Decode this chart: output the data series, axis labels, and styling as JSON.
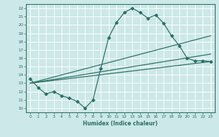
{
  "xlabel": "Humidex (Indice chaleur)",
  "ylabel": "",
  "xlim": [
    -0.5,
    23.5
  ],
  "ylim": [
    9.5,
    22.5
  ],
  "xticks": [
    0,
    1,
    2,
    3,
    4,
    5,
    6,
    7,
    8,
    9,
    10,
    11,
    12,
    13,
    14,
    15,
    16,
    17,
    18,
    19,
    20,
    21,
    22,
    23
  ],
  "yticks": [
    10,
    11,
    12,
    13,
    14,
    15,
    16,
    17,
    18,
    19,
    20,
    21,
    22
  ],
  "bg_color": "#cce8e8",
  "grid_color": "#ffffff",
  "line_color": "#2a6e65",
  "lines": [
    {
      "x": [
        0,
        1,
        2,
        3,
        4,
        5,
        6,
        7,
        8,
        9,
        10,
        11,
        12,
        13,
        14,
        15,
        16,
        17,
        18,
        19,
        20,
        21,
        22,
        23
      ],
      "y": [
        13.5,
        12.5,
        11.7,
        12.0,
        11.5,
        11.2,
        10.8,
        10.0,
        11.0,
        14.8,
        18.5,
        20.3,
        21.5,
        22.0,
        21.5,
        20.8,
        21.2,
        20.2,
        18.7,
        17.5,
        16.0,
        15.7,
        15.7,
        15.6
      ],
      "marker": "D",
      "markersize": 2.5,
      "linewidth": 0.9
    },
    {
      "x": [
        0,
        23
      ],
      "y": [
        13.0,
        18.7
      ],
      "marker": null,
      "markersize": 0,
      "linewidth": 0.9
    },
    {
      "x": [
        0,
        23
      ],
      "y": [
        13.0,
        16.5
      ],
      "marker": null,
      "markersize": 0,
      "linewidth": 0.9
    },
    {
      "x": [
        0,
        23
      ],
      "y": [
        13.0,
        15.6
      ],
      "marker": null,
      "markersize": 0,
      "linewidth": 0.9
    }
  ]
}
